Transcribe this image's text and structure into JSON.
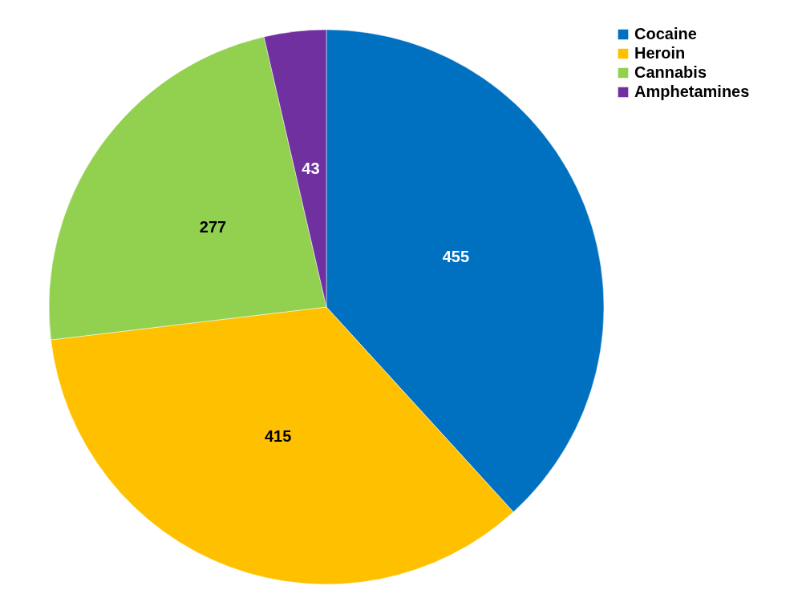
{
  "chart_data": {
    "type": "pie",
    "categories": [
      "Cocaine",
      "Heroin",
      "Cannabis",
      "Amphetamines"
    ],
    "values": [
      455,
      415,
      277,
      43
    ],
    "colors": [
      "#0070c0",
      "#ffc000",
      "#92d050",
      "#7030a0"
    ],
    "data_labels": true,
    "legend": "right"
  }
}
